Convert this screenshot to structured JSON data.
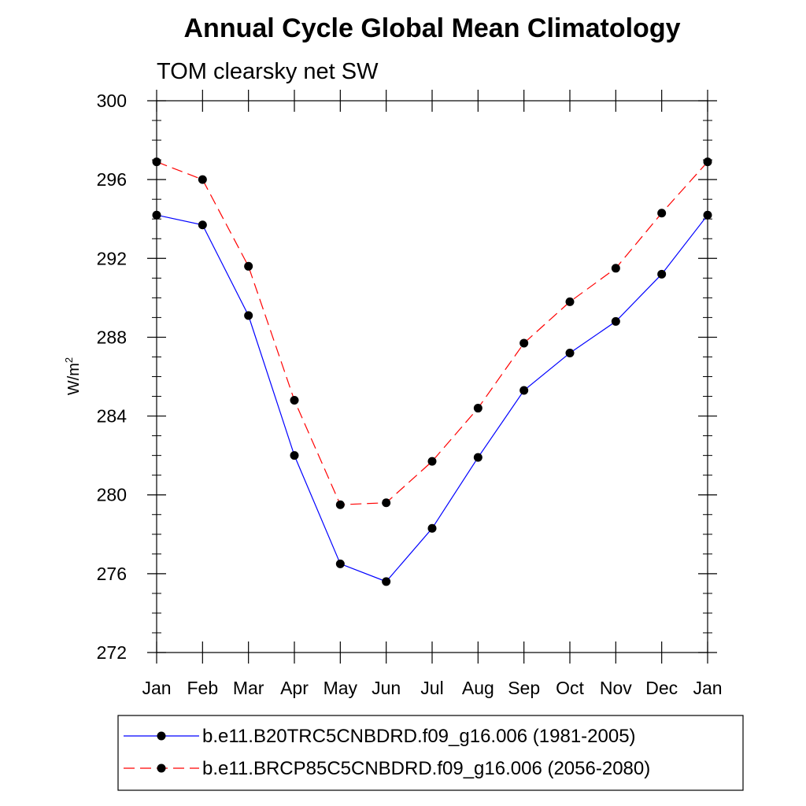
{
  "chart_data": {
    "type": "line",
    "title": "Annual Cycle Global Mean Climatology",
    "subtitle": "TOM clearsky net SW",
    "ylabel": "W/m",
    "ylabel_sup": "2",
    "xlabel": "",
    "categories": [
      "Jan",
      "Feb",
      "Mar",
      "Apr",
      "May",
      "Jun",
      "Jul",
      "Aug",
      "Sep",
      "Oct",
      "Nov",
      "Dec",
      "Jan"
    ],
    "ylim": [
      272,
      300
    ],
    "yticks": [
      272,
      276,
      280,
      284,
      288,
      292,
      296,
      300
    ],
    "series": [
      {
        "name": "b.e11.B20TRC5CNBDRD.f09_g16.006 (1981-2005)",
        "color": "#0000ff",
        "style": "solid",
        "values": [
          294.2,
          293.7,
          289.1,
          282.0,
          276.5,
          275.6,
          278.3,
          281.9,
          285.3,
          287.2,
          288.8,
          291.2,
          294.2
        ]
      },
      {
        "name": "b.e11.BRCP85C5CNBDRD.f09_g16.006 (2056-2080)",
        "color": "#ff0000",
        "style": "dashed",
        "values": [
          296.9,
          296.0,
          291.6,
          284.8,
          279.5,
          279.6,
          281.7,
          284.4,
          287.7,
          289.8,
          291.5,
          294.3,
          296.9
        ]
      }
    ],
    "legend_position": "bottom"
  }
}
